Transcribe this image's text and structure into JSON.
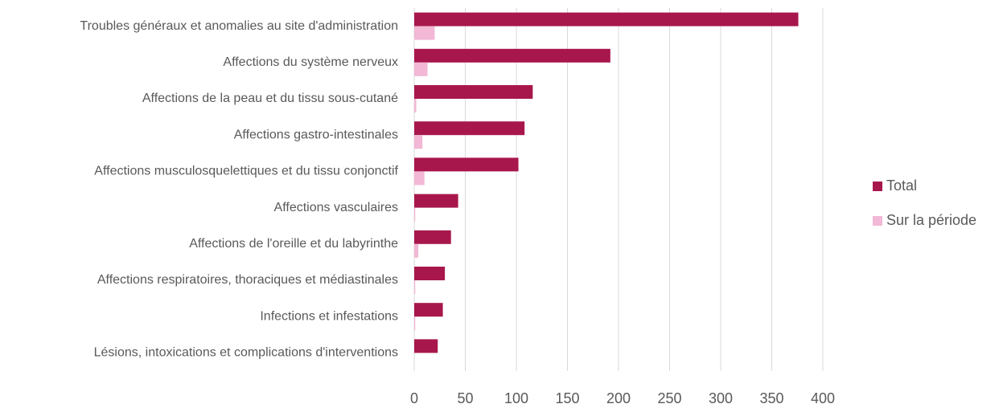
{
  "chart_data": {
    "type": "bar",
    "orientation": "horizontal",
    "categories": [
      "Troubles généraux et anomalies au site d'administration",
      "Affections du système nerveux",
      "Affections de la peau et du tissu sous-cutané",
      "Affections gastro-intestinales",
      "Affections musculosquelettiques et du tissu conjonctif",
      "Affections vasculaires",
      "Affections de l'oreille et du labyrinthe",
      "Affections respiratoires, thoraciques et médiastinales",
      "Infections et infestations",
      "Lésions, intoxications et complications d'interventions"
    ],
    "series": [
      {
        "name": "Total",
        "color": "#a8174c",
        "values": [
          376,
          192,
          116,
          108,
          102,
          43,
          36,
          30,
          28,
          23
        ]
      },
      {
        "name": "Sur la période",
        "color": "#f2b8d6",
        "values": [
          20,
          13,
          2,
          8,
          10,
          1,
          4,
          1,
          1,
          0
        ]
      }
    ],
    "xlim": [
      0,
      400
    ],
    "xticks": [
      0,
      50,
      100,
      150,
      200,
      250,
      300,
      350,
      400
    ],
    "grid": true,
    "legend": "right"
  }
}
